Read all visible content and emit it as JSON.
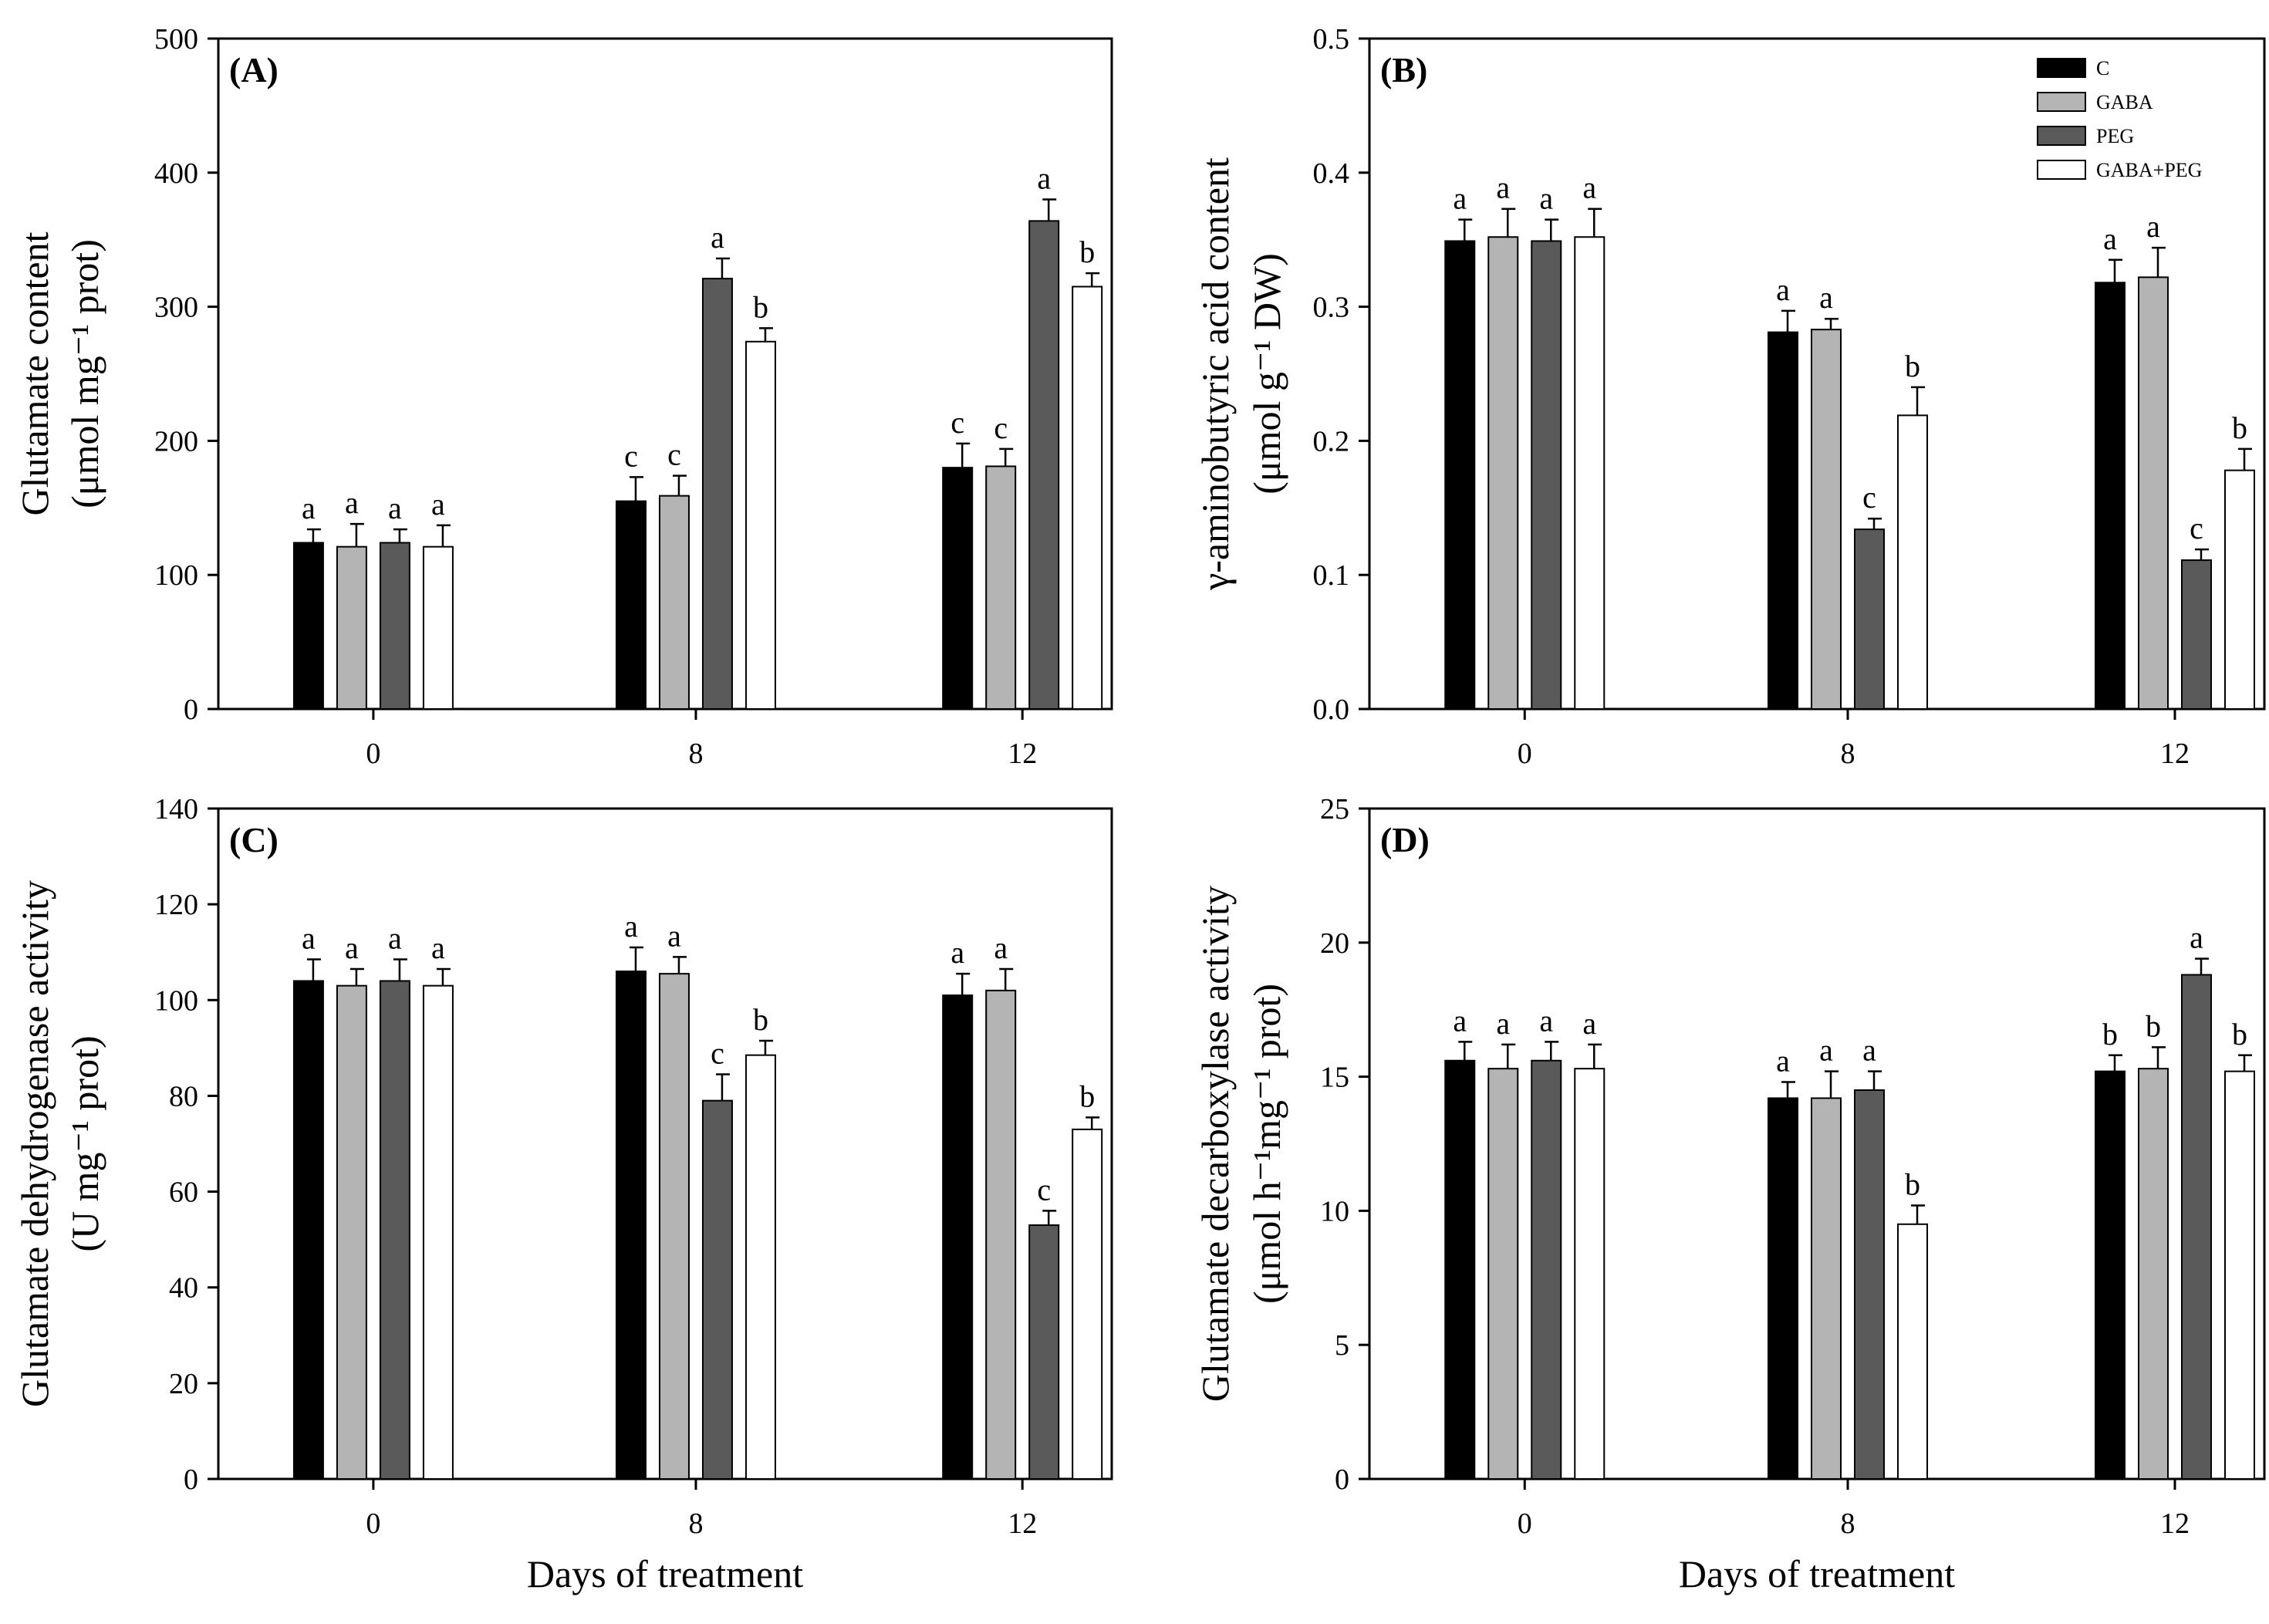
{
  "chart_data": [
    {
      "type": "bar",
      "panel": "(A)",
      "ylabel_line1": "Glutamate content",
      "ylabel_line2": "(μmol mg⁻¹ prot)",
      "xlabel": "",
      "categories": [
        "0",
        "8",
        "12"
      ],
      "ylim": [
        0,
        500
      ],
      "yticks": [
        "0",
        "100",
        "200",
        "300",
        "400",
        "500"
      ],
      "series": [
        {
          "name": "C",
          "values": [
            124,
            155,
            180
          ],
          "errors": [
            10,
            18,
            18
          ],
          "letters": [
            "a",
            "c",
            "c"
          ]
        },
        {
          "name": "GABA",
          "values": [
            121,
            159,
            181
          ],
          "errors": [
            17,
            15,
            13
          ],
          "letters": [
            "a",
            "c",
            "c"
          ]
        },
        {
          "name": "PEG",
          "values": [
            124,
            321,
            364
          ],
          "errors": [
            10,
            15,
            16
          ],
          "letters": [
            "a",
            "a",
            "a"
          ]
        },
        {
          "name": "GABA+PEG",
          "values": [
            121,
            274,
            315
          ],
          "errors": [
            16,
            10,
            10
          ],
          "letters": [
            "a",
            "b",
            "b"
          ]
        }
      ]
    },
    {
      "type": "bar",
      "panel": "(B)",
      "ylabel_line1": "γ-aminobutyric acid content",
      "ylabel_line2": "(μmol g⁻¹ DW)",
      "xlabel": "",
      "categories": [
        "0",
        "8",
        "12"
      ],
      "ylim": [
        0,
        0.5
      ],
      "yticks": [
        "0.0",
        "0.1",
        "0.2",
        "0.3",
        "0.4",
        "0.5"
      ],
      "series": [
        {
          "name": "C",
          "values": [
            0.349,
            0.281,
            0.318
          ],
          "errors": [
            0.016,
            0.016,
            0.017
          ],
          "letters": [
            "a",
            "a",
            "a"
          ]
        },
        {
          "name": "GABA",
          "values": [
            0.352,
            0.283,
            0.322
          ],
          "errors": [
            0.021,
            0.008,
            0.022
          ],
          "letters": [
            "a",
            "a",
            "a"
          ]
        },
        {
          "name": "PEG",
          "values": [
            0.349,
            0.134,
            0.111
          ],
          "errors": [
            0.016,
            0.008,
            0.008
          ],
          "letters": [
            "a",
            "c",
            "c"
          ]
        },
        {
          "name": "GABA+PEG",
          "values": [
            0.352,
            0.219,
            0.178
          ],
          "errors": [
            0.021,
            0.021,
            0.016
          ],
          "letters": [
            "a",
            "b",
            "b"
          ]
        }
      ],
      "legend": [
        "C",
        "GABA",
        "PEG",
        "GABA+PEG"
      ]
    },
    {
      "type": "bar",
      "panel": "(C)",
      "ylabel_line1": "Glutamate dehydrogenase activity",
      "ylabel_line2": "(U mg⁻¹ prot)",
      "xlabel": "Days of treatment",
      "categories": [
        "0",
        "8",
        "12"
      ],
      "ylim": [
        0,
        140
      ],
      "yticks": [
        "0",
        "20",
        "40",
        "60",
        "80",
        "100",
        "120",
        "140"
      ],
      "series": [
        {
          "name": "C",
          "values": [
            104,
            106,
            101
          ],
          "errors": [
            4.5,
            5,
            4.5
          ],
          "letters": [
            "a",
            "a",
            "a"
          ]
        },
        {
          "name": "GABA",
          "values": [
            103,
            105.5,
            102
          ],
          "errors": [
            3.5,
            3.5,
            4.5
          ],
          "letters": [
            "a",
            "a",
            "a"
          ]
        },
        {
          "name": "PEG",
          "values": [
            104,
            79,
            53
          ],
          "errors": [
            4.5,
            5.5,
            3
          ],
          "letters": [
            "a",
            "c",
            "c"
          ]
        },
        {
          "name": "GABA+PEG",
          "values": [
            103,
            88.5,
            73
          ],
          "errors": [
            3.5,
            3,
            2.5
          ],
          "letters": [
            "a",
            "b",
            "b"
          ]
        }
      ]
    },
    {
      "type": "bar",
      "panel": "(D)",
      "ylabel_line1": "Glutamate decarboxylase activity",
      "ylabel_line2": "(μmol h⁻¹mg⁻¹ prot)",
      "xlabel": "Days of treatment",
      "categories": [
        "0",
        "8",
        "12"
      ],
      "ylim": [
        0,
        25
      ],
      "yticks": [
        "0",
        "5",
        "10",
        "15",
        "20",
        "25"
      ],
      "series": [
        {
          "name": "C",
          "values": [
            15.6,
            14.2,
            15.2
          ],
          "errors": [
            0.7,
            0.6,
            0.6
          ],
          "letters": [
            "a",
            "a",
            "b"
          ]
        },
        {
          "name": "GABA",
          "values": [
            15.3,
            14.2,
            15.3
          ],
          "errors": [
            0.9,
            1.0,
            0.8
          ],
          "letters": [
            "a",
            "a",
            "b"
          ]
        },
        {
          "name": "PEG",
          "values": [
            15.6,
            14.5,
            18.8
          ],
          "errors": [
            0.7,
            0.7,
            0.6
          ],
          "letters": [
            "a",
            "a",
            "a"
          ]
        },
        {
          "name": "GABA+PEG",
          "values": [
            15.3,
            9.5,
            15.2
          ],
          "errors": [
            0.9,
            0.7,
            0.6
          ],
          "letters": [
            "a",
            "b",
            "b"
          ]
        }
      ]
    }
  ],
  "colors": {
    "C": "#000000",
    "GABA": "#b4b4b4",
    "PEG": "#5a5a5a",
    "GABA+PEG": "#ffffff"
  }
}
